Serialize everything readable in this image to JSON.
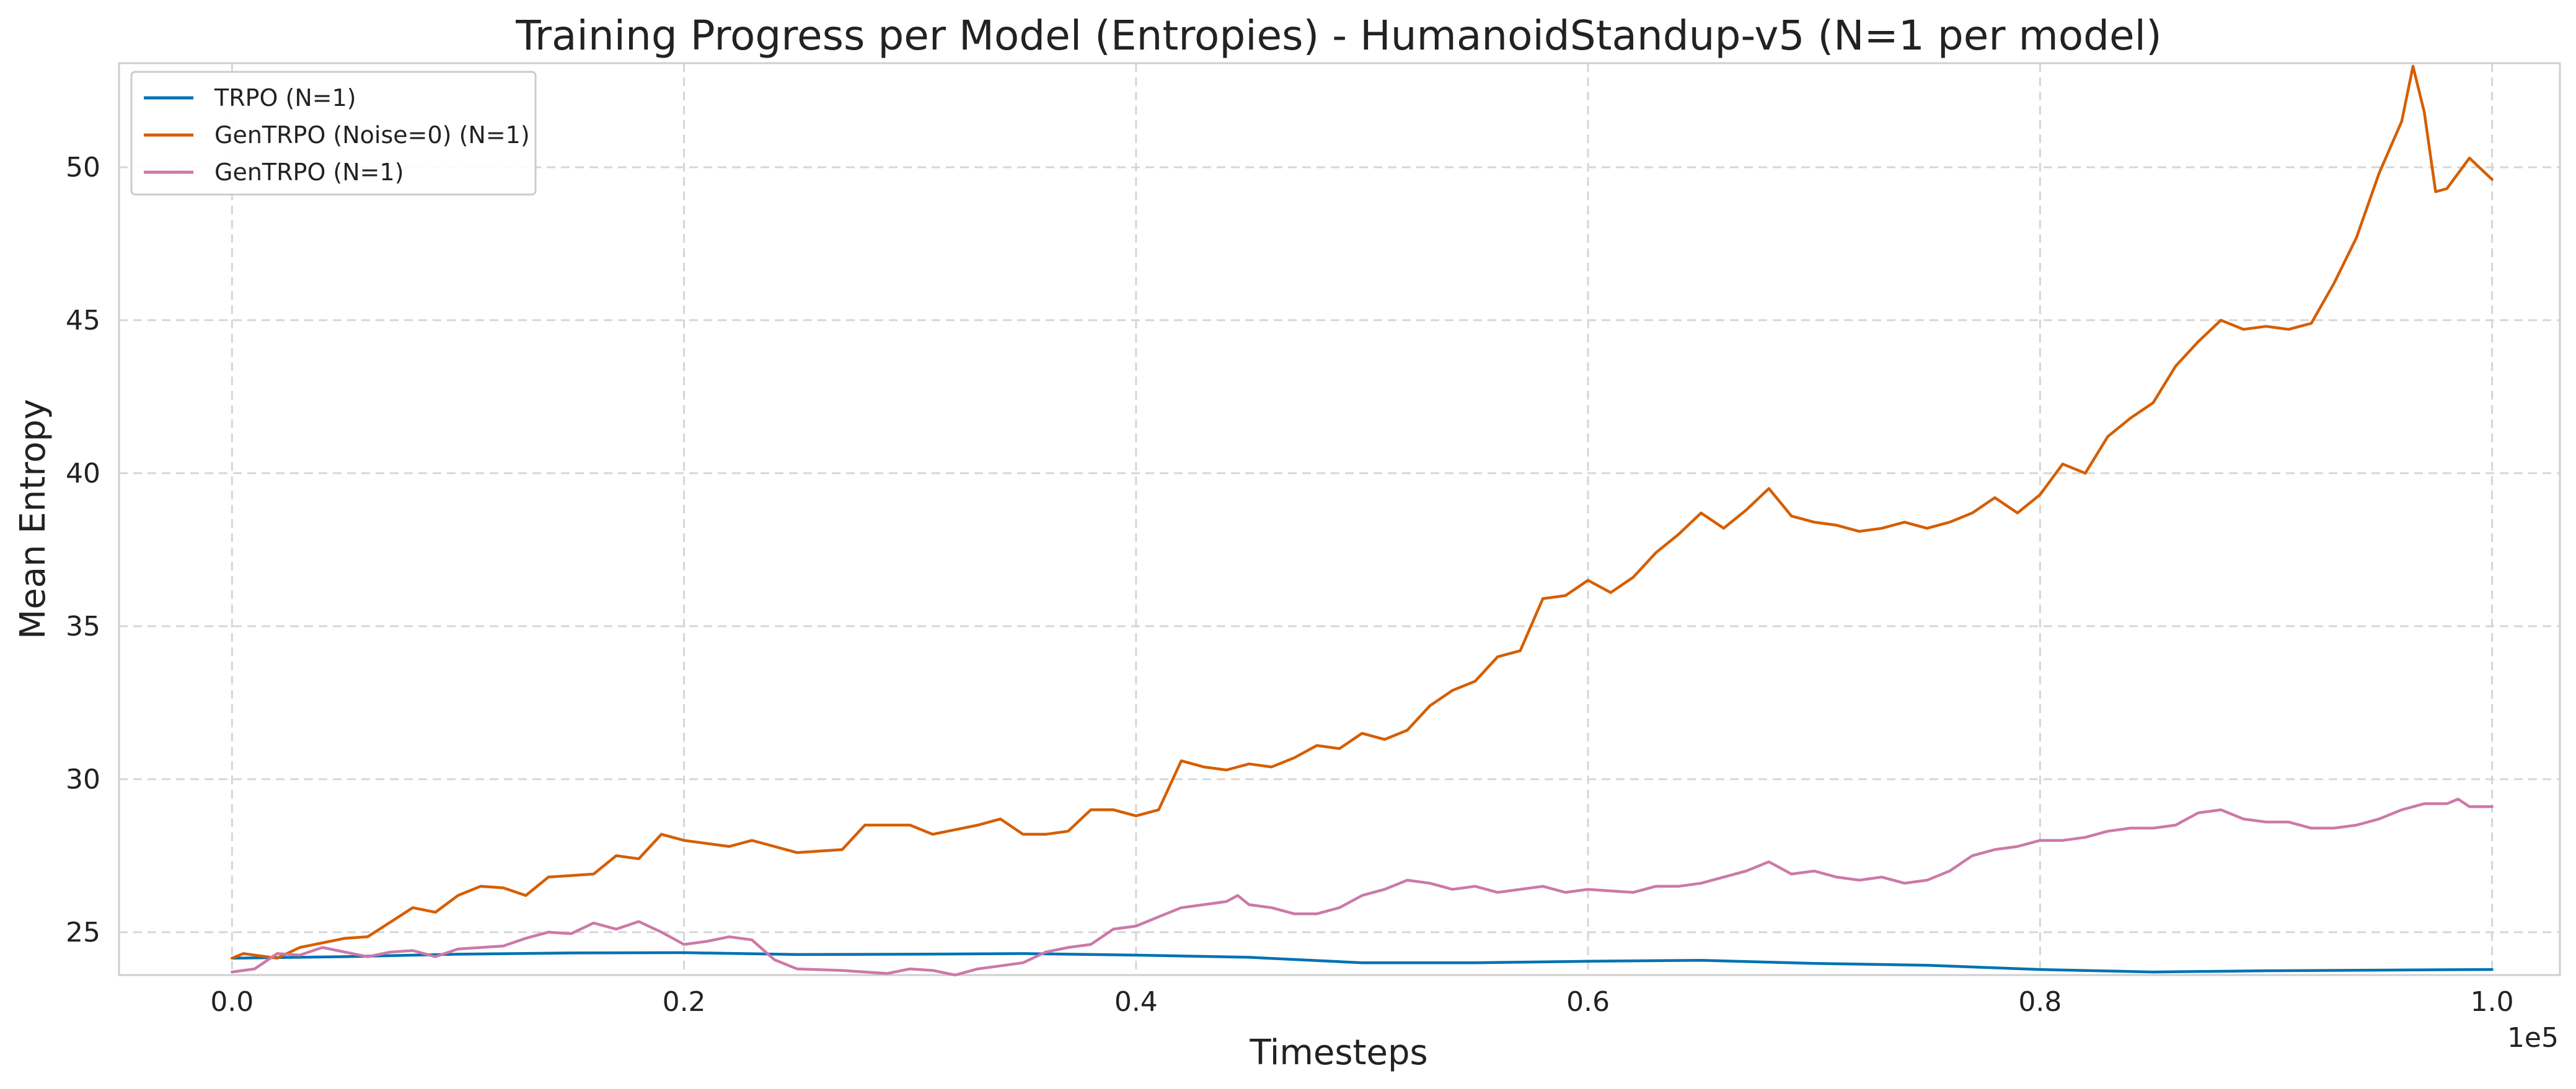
{
  "chart_data": {
    "type": "line",
    "title": "Training Progress per Model (Entropies) - HumanoidStandup-v5 (N=1 per model)",
    "xlabel": "Timesteps",
    "ylabel": "Mean Entropy",
    "x_offset_label": "1e5",
    "xlim": [
      -0.05,
      1.03
    ],
    "ylim": [
      23.6,
      53.4
    ],
    "x_ticks": [
      0.0,
      0.2,
      0.4,
      0.6,
      0.8,
      1.0
    ],
    "x_tick_labels": [
      "0.0",
      "0.2",
      "0.4",
      "0.6",
      "0.8",
      "1.0"
    ],
    "y_ticks": [
      25,
      30,
      35,
      40,
      45,
      50
    ],
    "y_tick_labels": [
      "25",
      "30",
      "35",
      "40",
      "45",
      "50"
    ],
    "grid": true,
    "legend_position": "top-left",
    "series": [
      {
        "name": "TRPO (N=1)",
        "color": "#0072B2",
        "points": [
          [
            0.0,
            24.15
          ],
          [
            0.05,
            24.2
          ],
          [
            0.1,
            24.28
          ],
          [
            0.15,
            24.32
          ],
          [
            0.2,
            24.33
          ],
          [
            0.25,
            24.27
          ],
          [
            0.3,
            24.28
          ],
          [
            0.35,
            24.3
          ],
          [
            0.4,
            24.25
          ],
          [
            0.45,
            24.18
          ],
          [
            0.5,
            24.0
          ],
          [
            0.55,
            24.0
          ],
          [
            0.6,
            24.05
          ],
          [
            0.65,
            24.08
          ],
          [
            0.7,
            23.98
          ],
          [
            0.75,
            23.92
          ],
          [
            0.8,
            23.78
          ],
          [
            0.85,
            23.7
          ],
          [
            0.9,
            23.74
          ],
          [
            0.95,
            23.76
          ],
          [
            1.0,
            23.78
          ]
        ]
      },
      {
        "name": "GenTRPO (Noise=0) (N=1)",
        "color": "#D55E00",
        "points": [
          [
            0.0,
            24.15
          ],
          [
            0.005,
            24.3
          ],
          [
            0.02,
            24.15
          ],
          [
            0.03,
            24.5
          ],
          [
            0.05,
            24.8
          ],
          [
            0.06,
            24.85
          ],
          [
            0.08,
            25.8
          ],
          [
            0.09,
            25.65
          ],
          [
            0.1,
            26.2
          ],
          [
            0.11,
            26.5
          ],
          [
            0.12,
            26.45
          ],
          [
            0.13,
            26.2
          ],
          [
            0.14,
            26.8
          ],
          [
            0.16,
            26.9
          ],
          [
            0.17,
            27.5
          ],
          [
            0.18,
            27.4
          ],
          [
            0.19,
            28.2
          ],
          [
            0.2,
            28.0
          ],
          [
            0.22,
            27.8
          ],
          [
            0.23,
            28.0
          ],
          [
            0.24,
            27.8
          ],
          [
            0.25,
            27.6
          ],
          [
            0.27,
            27.7
          ],
          [
            0.28,
            28.5
          ],
          [
            0.3,
            28.5
          ],
          [
            0.31,
            28.2
          ],
          [
            0.33,
            28.5
          ],
          [
            0.34,
            28.7
          ],
          [
            0.35,
            28.2
          ],
          [
            0.36,
            28.2
          ],
          [
            0.37,
            28.3
          ],
          [
            0.38,
            29.0
          ],
          [
            0.39,
            29.0
          ],
          [
            0.4,
            28.8
          ],
          [
            0.41,
            29.0
          ],
          [
            0.42,
            30.6
          ],
          [
            0.43,
            30.4
          ],
          [
            0.44,
            30.3
          ],
          [
            0.45,
            30.5
          ],
          [
            0.46,
            30.4
          ],
          [
            0.47,
            30.7
          ],
          [
            0.48,
            31.1
          ],
          [
            0.49,
            31.0
          ],
          [
            0.5,
            31.5
          ],
          [
            0.51,
            31.3
          ],
          [
            0.52,
            31.6
          ],
          [
            0.53,
            32.4
          ],
          [
            0.54,
            32.9
          ],
          [
            0.55,
            33.2
          ],
          [
            0.56,
            34.0
          ],
          [
            0.57,
            34.2
          ],
          [
            0.58,
            35.9
          ],
          [
            0.59,
            36.0
          ],
          [
            0.6,
            36.5
          ],
          [
            0.61,
            36.1
          ],
          [
            0.62,
            36.6
          ],
          [
            0.63,
            37.4
          ],
          [
            0.64,
            38.0
          ],
          [
            0.65,
            38.7
          ],
          [
            0.66,
            38.2
          ],
          [
            0.67,
            38.8
          ],
          [
            0.68,
            39.5
          ],
          [
            0.69,
            38.6
          ],
          [
            0.7,
            38.4
          ],
          [
            0.71,
            38.3
          ],
          [
            0.72,
            38.1
          ],
          [
            0.73,
            38.2
          ],
          [
            0.74,
            38.4
          ],
          [
            0.75,
            38.2
          ],
          [
            0.76,
            38.4
          ],
          [
            0.77,
            38.7
          ],
          [
            0.78,
            39.2
          ],
          [
            0.79,
            38.7
          ],
          [
            0.8,
            39.3
          ],
          [
            0.81,
            40.3
          ],
          [
            0.82,
            40.0
          ],
          [
            0.83,
            41.2
          ],
          [
            0.84,
            41.8
          ],
          [
            0.85,
            42.3
          ],
          [
            0.86,
            43.5
          ],
          [
            0.87,
            44.3
          ],
          [
            0.88,
            45.0
          ],
          [
            0.89,
            44.7
          ],
          [
            0.9,
            44.8
          ],
          [
            0.91,
            44.7
          ],
          [
            0.92,
            44.9
          ],
          [
            0.93,
            46.2
          ],
          [
            0.94,
            47.7
          ],
          [
            0.95,
            49.8
          ],
          [
            0.96,
            51.5
          ],
          [
            0.965,
            53.3
          ],
          [
            0.97,
            51.8
          ],
          [
            0.975,
            49.2
          ],
          [
            0.98,
            49.3
          ],
          [
            0.99,
            50.3
          ],
          [
            1.0,
            49.6
          ]
        ]
      },
      {
        "name": "GenTRPO (N=1)",
        "color": "#CC79A7",
        "points": [
          [
            0.0,
            23.7
          ],
          [
            0.01,
            23.8
          ],
          [
            0.02,
            24.3
          ],
          [
            0.03,
            24.25
          ],
          [
            0.04,
            24.5
          ],
          [
            0.05,
            24.35
          ],
          [
            0.06,
            24.2
          ],
          [
            0.07,
            24.35
          ],
          [
            0.08,
            24.4
          ],
          [
            0.09,
            24.2
          ],
          [
            0.1,
            24.45
          ],
          [
            0.12,
            24.55
          ],
          [
            0.13,
            24.8
          ],
          [
            0.14,
            25.0
          ],
          [
            0.15,
            24.95
          ],
          [
            0.16,
            25.3
          ],
          [
            0.17,
            25.1
          ],
          [
            0.18,
            25.35
          ],
          [
            0.19,
            25.0
          ],
          [
            0.2,
            24.6
          ],
          [
            0.21,
            24.7
          ],
          [
            0.22,
            24.85
          ],
          [
            0.23,
            24.75
          ],
          [
            0.24,
            24.1
          ],
          [
            0.25,
            23.8
          ],
          [
            0.27,
            23.75
          ],
          [
            0.28,
            23.7
          ],
          [
            0.29,
            23.65
          ],
          [
            0.3,
            23.8
          ],
          [
            0.31,
            23.75
          ],
          [
            0.32,
            23.6
          ],
          [
            0.33,
            23.8
          ],
          [
            0.34,
            23.9
          ],
          [
            0.35,
            24.0
          ],
          [
            0.36,
            24.35
          ],
          [
            0.37,
            24.5
          ],
          [
            0.38,
            24.6
          ],
          [
            0.39,
            25.1
          ],
          [
            0.4,
            25.2
          ],
          [
            0.41,
            25.5
          ],
          [
            0.42,
            25.8
          ],
          [
            0.43,
            25.9
          ],
          [
            0.44,
            26.0
          ],
          [
            0.445,
            26.2
          ],
          [
            0.45,
            25.9
          ],
          [
            0.46,
            25.8
          ],
          [
            0.47,
            25.6
          ],
          [
            0.48,
            25.6
          ],
          [
            0.49,
            25.8
          ],
          [
            0.5,
            26.2
          ],
          [
            0.51,
            26.4
          ],
          [
            0.52,
            26.7
          ],
          [
            0.53,
            26.6
          ],
          [
            0.54,
            26.4
          ],
          [
            0.55,
            26.5
          ],
          [
            0.56,
            26.3
          ],
          [
            0.57,
            26.4
          ],
          [
            0.58,
            26.5
          ],
          [
            0.59,
            26.3
          ],
          [
            0.6,
            26.4
          ],
          [
            0.61,
            26.35
          ],
          [
            0.62,
            26.3
          ],
          [
            0.63,
            26.5
          ],
          [
            0.64,
            26.5
          ],
          [
            0.65,
            26.6
          ],
          [
            0.66,
            26.8
          ],
          [
            0.67,
            27.0
          ],
          [
            0.68,
            27.3
          ],
          [
            0.69,
            26.9
          ],
          [
            0.7,
            27.0
          ],
          [
            0.71,
            26.8
          ],
          [
            0.72,
            26.7
          ],
          [
            0.73,
            26.8
          ],
          [
            0.74,
            26.6
          ],
          [
            0.75,
            26.7
          ],
          [
            0.76,
            27.0
          ],
          [
            0.77,
            27.5
          ],
          [
            0.78,
            27.7
          ],
          [
            0.79,
            27.8
          ],
          [
            0.8,
            28.0
          ],
          [
            0.81,
            28.0
          ],
          [
            0.82,
            28.1
          ],
          [
            0.83,
            28.3
          ],
          [
            0.84,
            28.4
          ],
          [
            0.85,
            28.4
          ],
          [
            0.86,
            28.5
          ],
          [
            0.87,
            28.9
          ],
          [
            0.88,
            29.0
          ],
          [
            0.89,
            28.7
          ],
          [
            0.9,
            28.6
          ],
          [
            0.91,
            28.6
          ],
          [
            0.92,
            28.4
          ],
          [
            0.93,
            28.4
          ],
          [
            0.94,
            28.5
          ],
          [
            0.95,
            28.7
          ],
          [
            0.96,
            29.0
          ],
          [
            0.97,
            29.2
          ],
          [
            0.98,
            29.2
          ],
          [
            0.985,
            29.35
          ],
          [
            0.99,
            29.1
          ],
          [
            1.0,
            29.1
          ]
        ]
      }
    ]
  }
}
